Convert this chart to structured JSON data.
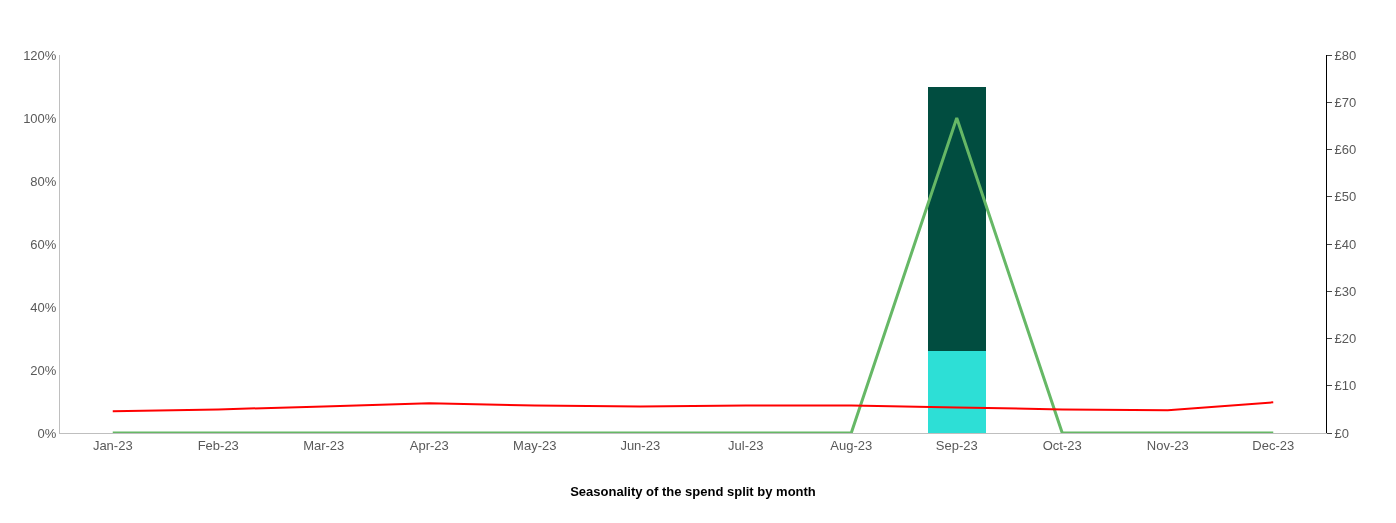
{
  "chart_data": {
    "type": "bar",
    "xlabel": "Seasonality of the spend split by month",
    "categories": [
      "Jan-23",
      "Feb-23",
      "Mar-23",
      "Apr-23",
      "May-23",
      "Jun-23",
      "Jul-23",
      "Aug-23",
      "Sep-23",
      "Oct-23",
      "Nov-23",
      "Dec-23"
    ],
    "stacked": true,
    "series": [
      {
        "color": "#2ddfd6",
        "values": [
          null,
          null,
          null,
          null,
          null,
          null,
          null,
          null,
          26,
          null,
          null,
          null
        ]
      },
      {
        "color": "#014d40",
        "values": [
          null,
          null,
          null,
          null,
          null,
          null,
          null,
          null,
          84,
          null,
          null,
          null
        ]
      },
      {
        "type": "line",
        "color": "#66b866",
        "values": [
          0,
          0,
          0,
          0,
          0,
          0,
          0,
          0,
          100,
          0,
          0,
          0
        ]
      },
      {
        "type": "line",
        "axis": "y2",
        "color": "#ff0000",
        "values": [
          4.6,
          5.0,
          5.6,
          6.3,
          5.8,
          5.6,
          5.8,
          5.8,
          5.4,
          5.0,
          4.8,
          6.5
        ]
      }
    ],
    "ylim": [
      0,
      120
    ],
    "yticks": [
      {
        "value": 0,
        "label": "0%"
      },
      {
        "value": 20,
        "label": "20%"
      },
      {
        "value": 40,
        "label": "40%"
      },
      {
        "value": 60,
        "label": "60%"
      },
      {
        "value": 80,
        "label": "80%"
      },
      {
        "value": 100,
        "label": "100%"
      },
      {
        "value": 120,
        "label": "120%"
      }
    ],
    "y2lim": [
      0,
      80
    ],
    "y2ticks": [
      {
        "value": 0,
        "label": "£0"
      },
      {
        "value": 10,
        "label": "£10"
      },
      {
        "value": 20,
        "label": "£20"
      },
      {
        "value": 30,
        "label": "£30"
      },
      {
        "value": 40,
        "label": "£40"
      },
      {
        "value": 50,
        "label": "£50"
      },
      {
        "value": 60,
        "label": "£60"
      },
      {
        "value": 70,
        "label": "£70"
      },
      {
        "value": 80,
        "label": "£80"
      }
    ],
    "legend": false
  }
}
